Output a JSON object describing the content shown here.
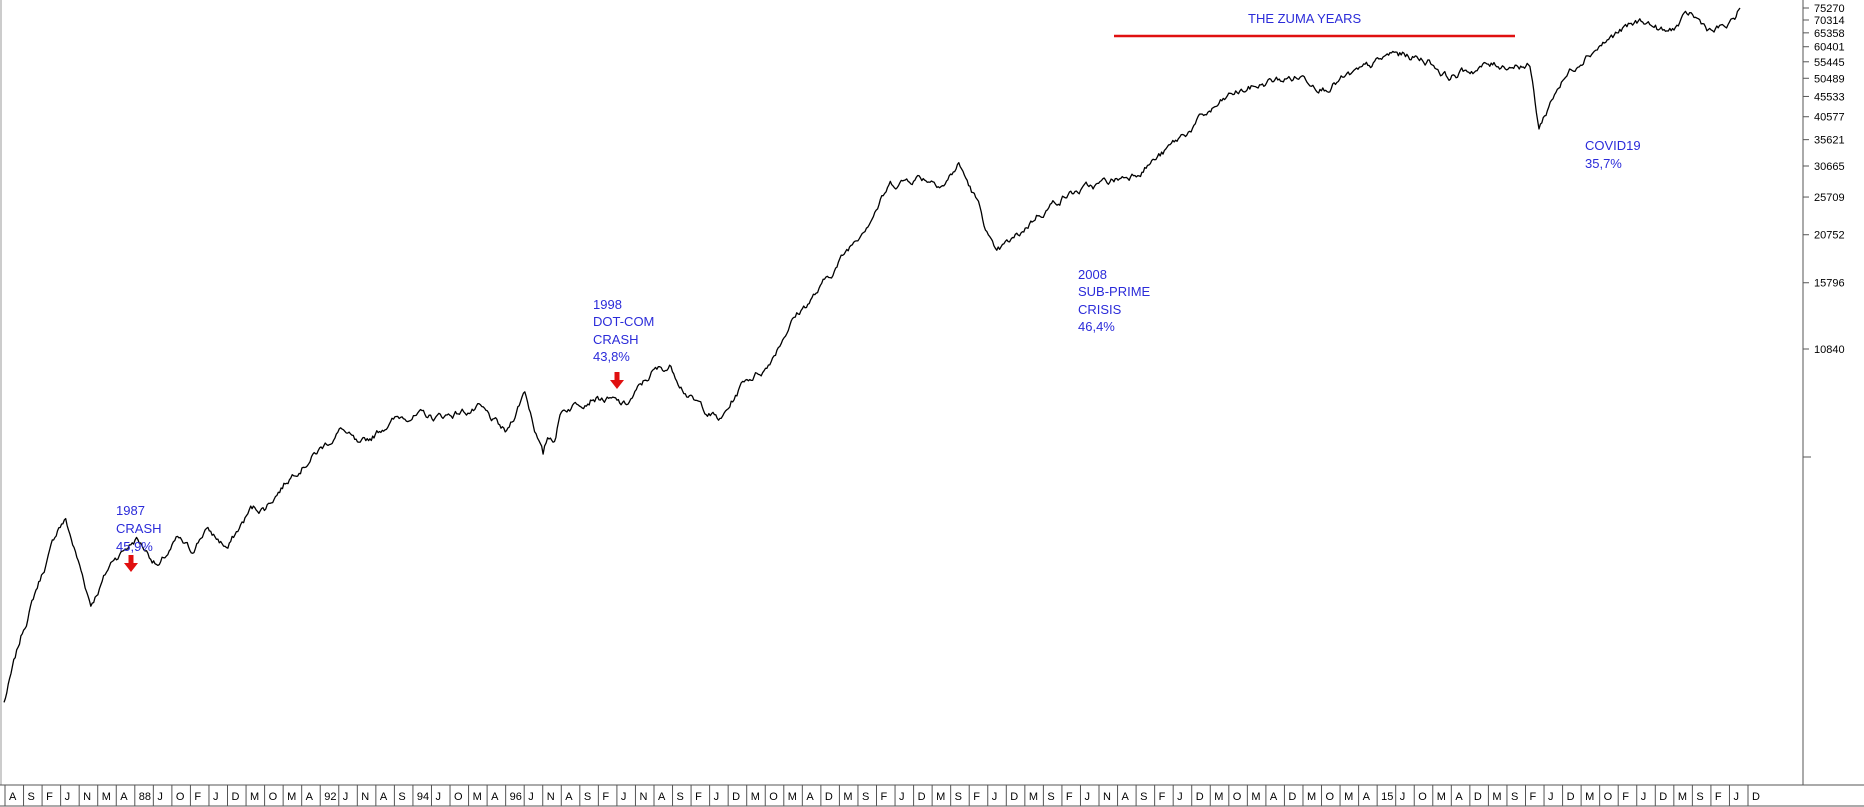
{
  "chart_data": {
    "type": "line",
    "title": "",
    "xlabel": "",
    "ylabel": "",
    "y_scale": "log",
    "grid": false,
    "line_color": "#000000",
    "annotation_color": "#2b2bd9",
    "marker_color": "#e01010",
    "yticks": [
      "75270",
      "70314",
      "65358",
      "60401",
      "55445",
      "50489",
      "45533",
      "40577",
      "35621",
      "30665",
      "25709",
      "20752",
      "15796",
      "10840"
    ],
    "xticks": [
      "A",
      "S",
      "F",
      "J",
      "N",
      "M",
      "A",
      "88",
      "J",
      "O",
      "F",
      "J",
      "D",
      "M",
      "O",
      "M",
      "A",
      "92",
      "J",
      "N",
      "A",
      "S",
      "94",
      "J",
      "O",
      "M",
      "A",
      "96",
      "J",
      "N",
      "A",
      "S",
      "F",
      "J",
      "N",
      "A",
      "S",
      "F",
      "J",
      "D",
      "M",
      "O",
      "M",
      "A",
      "D",
      "M",
      "S",
      "F",
      "J",
      "D",
      "M",
      "S",
      "F",
      "J",
      "D",
      "M",
      "S",
      "F",
      "J",
      "N",
      "A",
      "S",
      "F",
      "J",
      "D",
      "M",
      "O",
      "M",
      "A",
      "D",
      "M",
      "O",
      "M",
      "A",
      "15",
      "J",
      "O",
      "M",
      "A",
      "D",
      "M",
      "S",
      "F",
      "J",
      "D",
      "M",
      "O",
      "F",
      "J",
      "D",
      "M",
      "S",
      "F",
      "J",
      "D"
    ],
    "series": [
      {
        "x": [
          1986.6,
          1987.0,
          1987.3,
          1987.6,
          1987.8,
          1987.95,
          1988.5,
          1989.0,
          1989.5,
          1990.0,
          1990.4,
          1990.7,
          1991.0,
          1991.5,
          1992.0,
          1992.3,
          1993.0,
          1993.6,
          1994.0,
          1994.4,
          1995.0,
          1995.5,
          1996.0,
          1996.6,
          1997.0,
          1997.6,
          1998.0,
          1998.4,
          1998.5,
          1998.65,
          1998.8,
          1999.5,
          2000.2,
          2000.8,
          2001.2,
          2001.7,
          2002.3,
          2002.8,
          2003.3,
          2003.8,
          2004.5,
          2005.2,
          2006.0,
          2006.6,
          2007.2,
          2007.5,
          2007.9,
          2008.3,
          2008.8,
          2009.2,
          2009.8,
          2010.5,
          2011.2,
          2012.0,
          2012.8,
          2013.5,
          2014.3,
          2015.0,
          2015.5,
          2016.3,
          2017.0,
          2017.8,
          2018.2,
          2019.0,
          2019.8,
          2020.0,
          2020.2,
          2020.6,
          2021.2,
          2022.0,
          2022.5,
          2023.0,
          2023.5,
          2024.0,
          2024.4,
          2024.6
        ],
        "values": [
          1450,
          2150,
          2750,
          3400,
          3950,
          4100,
          2550,
          3300,
          3700,
          3150,
          3650,
          3400,
          3900,
          3500,
          4350,
          4400,
          5500,
          6250,
          6900,
          6100,
          7150,
          7500,
          7300,
          7600,
          7700,
          6650,
          8600,
          5900,
          6500,
          6550,
          7650,
          8400,
          7800,
          9500,
          9800,
          8050,
          7200,
          9050,
          9800,
          12600,
          15400,
          20000,
          27500,
          29000,
          28000,
          31000,
          25000,
          18400,
          20500,
          23200,
          26000,
          27300,
          29000,
          33000,
          40000,
          46000,
          49500,
          51000,
          48500,
          52000,
          58000,
          56000,
          51000,
          54000,
          55000,
          54000,
          38000,
          48000,
          58000,
          66000,
          70000,
          65000,
          72000,
          66000,
          68000,
          75270
        ]
      }
    ],
    "annotations": [
      {
        "lines": [
          "1987",
          "CRASH",
          "45,9%"
        ]
      },
      {
        "lines": [
          "1998",
          "DOT-COM",
          "CRASH",
          "43,8%"
        ]
      },
      {
        "lines": [
          "2008",
          "SUB-PRIME",
          "CRISIS",
          "46,4%"
        ]
      },
      {
        "lines": [
          "COVID19",
          "35,7%"
        ]
      },
      {
        "lines": [
          "THE ZUMA YEARS"
        ]
      }
    ]
  }
}
